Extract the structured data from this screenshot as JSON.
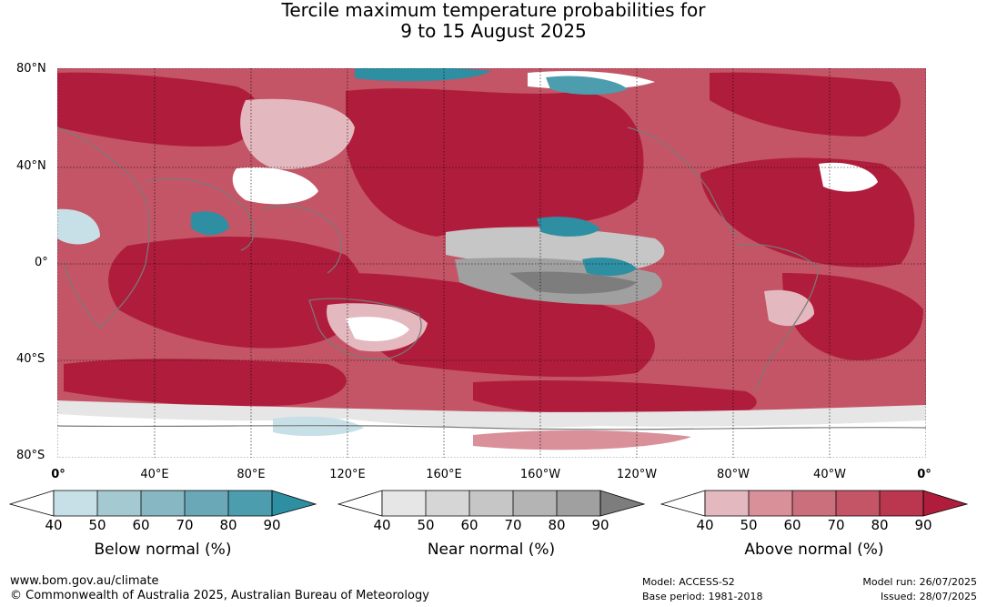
{
  "title": {
    "line1": "Tercile maximum temperature probabilities for",
    "line2": "9 to 15 August 2025"
  },
  "map": {
    "lat_labels": [
      "80°N",
      "40°N",
      "0°",
      "40°S",
      "80°S"
    ],
    "lon_labels": [
      "0°",
      "40°E",
      "80°E",
      "120°E",
      "160°E",
      "160°W",
      "120°W",
      "80°W",
      "40°W",
      "0°"
    ]
  },
  "colorbars": [
    {
      "label": "Below normal (%)",
      "ticks": [
        "40",
        "50",
        "60",
        "70",
        "80",
        "90"
      ],
      "colors": [
        "#c7e0e7",
        "#a5c9d1",
        "#87b7c2",
        "#6aa8b7",
        "#4c9dae",
        "#2e8ea2"
      ]
    },
    {
      "label": "Near normal (%)",
      "ticks": [
        "40",
        "50",
        "60",
        "70",
        "80",
        "90"
      ],
      "colors": [
        "#e6e6e6",
        "#d6d6d6",
        "#c6c6c6",
        "#b4b4b4",
        "#a0a0a0",
        "#7d7d7d"
      ]
    },
    {
      "label": "Above normal (%)",
      "ticks": [
        "40",
        "50",
        "60",
        "70",
        "80",
        "90"
      ],
      "colors": [
        "#e3b8bf",
        "#d99099",
        "#ca6f7b",
        "#c35566",
        "#bb3750",
        "#b01d3c"
      ]
    }
  ],
  "footer": {
    "website": "www.bom.gov.au/climate",
    "copyright": "© Commonwealth of Australia 2025, Australian Bureau of Meteorology",
    "model": "Model: ACCESS-S2",
    "base_period": "Base period: 1981-2018",
    "model_run": "Model run: 26/07/2025",
    "issued": "Issued: 28/07/2025"
  },
  "palette": {
    "deep_red": "#b01d3c",
    "mid_red": "#c35566",
    "light_red": "#e3b8bf",
    "teal": "#2e8ea2",
    "light_blue": "#c7e0e7",
    "grey": "#a0a0a0",
    "light_grey": "#d6d6d6",
    "coast": "#7a7a7a"
  }
}
